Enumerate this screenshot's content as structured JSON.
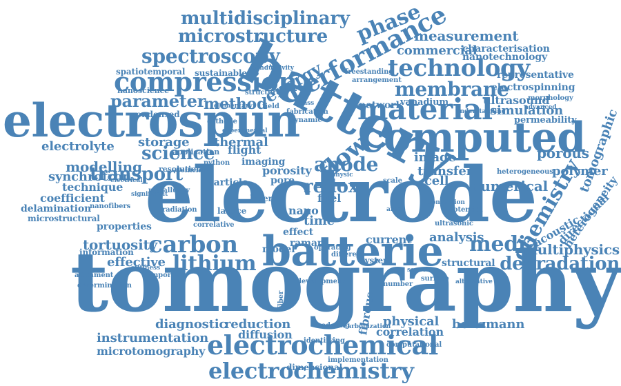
{
  "colors": {
    "word": "#4a83b6",
    "background": "#ffffff"
  },
  "words": {
    "tomography": "tomography",
    "electrode": "electrode",
    "battery": "battery",
    "electrospun": "electrospun",
    "computed": "computed",
    "batterie": "batterie",
    "electrochemical": "electrochemical",
    "electrochemistry": "electrochemistry",
    "material": "material",
    "compression": "compression",
    "performance": "performance",
    "technology": "technology",
    "membrane": "membrane",
    "spectroscopy": "spectroscopy",
    "microstructure": "microstructure",
    "multidisciplinary": "multidisciplinary",
    "measurement": "measurement",
    "carbon": "carbon",
    "lithium": "lithium",
    "degradation": "degradation",
    "media": "media",
    "transport": "transport",
    "science": "science",
    "image": "image",
    "redox": "redox",
    "flow": "flow",
    "chemistry": "chemistry",
    "parameter": "parameter",
    "method": "method",
    "energy": "energy",
    "commercial": "commercial",
    "nanotechnology": "nanotechnology",
    "characterisation": "characterisation",
    "electrospinning": "electrospinning",
    "representative": "representative",
    "ultrasound": "ultrasound",
    "permeability": "permeability",
    "simulation": "simulation",
    "transfer": "transfer",
    "anode": "anode",
    "cell": "cell",
    "numerical": "numerical",
    "polymer": "polymer",
    "tomographic": "tomographic",
    "heterogeneity": "heterogeneity",
    "heterogeneous": "heterogeneous",
    "directional": "directional",
    "multiphysics": "multiphysics",
    "electrolyte": "electrolyte",
    "modelling": "modelling",
    "synchrotron": "synchrotron",
    "technique": "technique",
    "coefficient": "coefficient",
    "delamination": "delamination",
    "microstructural": "microstructural",
    "tortuosity": "tortuosity",
    "effective": "effective",
    "information": "information",
    "thermal": "thermal",
    "diagnostic": "diagnostic",
    "instrumentation": "instrumentation",
    "microtomography": "microtomography",
    "reduction": "reduction",
    "diffusion": "diffusion",
    "physical": "physical",
    "correlation": "correlation",
    "boltzmann": "boltzmann",
    "fibrous": "fibrous",
    "analysis": "analysis",
    "current": "current",
    "structural": "structural",
    "spatiotemporal": "spatiotemporal",
    "sustainable": "sustainable",
    "nanoscience": "nanoscience",
    "elementary": "elementary",
    "imaging": "imaging",
    "porosity": "porosity",
    "network": "network",
    "vanadium": "vanadium",
    "arrangement": "arrangement",
    "freestanding": "freestanding",
    "condensed": "condensed",
    "resolution": "resolution",
    "pore": "pore",
    "layer": "layer",
    "particle": "particle",
    "lattice": "lattice",
    "fuel": "fuel",
    "nano": "nano",
    "time": "time",
    "effect": "effect",
    "model": "model",
    "raman": "raman",
    "dimensional": "dimensional",
    "implementation": "implementation",
    "porous": "porous",
    "acoustic": "acoustic",
    "properties": "properties",
    "storage": "storage",
    "alignment": "alignment",
    "radiation": "radiation",
    "application": "application",
    "correlative": "correlative",
    "important": "important",
    "stiffness": "stiffness",
    "python": "python",
    "scale": "scale",
    "area": "area",
    "system": "system",
    "potential": "potential",
    "ultrasonic": "ultrasonic",
    "conversion": "conversion",
    "modeling": "modeling",
    "carbonization": "carbonization",
    "identifying": "identifying",
    "cathode": "cathode",
    "conductivity": "conductivity",
    "structure": "structure",
    "experimental": "experimental",
    "operating": "operating",
    "metallurgy": "metallurgy",
    "nanofibers": "nanofibers",
    "electrical": "electrical",
    "different": "different",
    "number": "number",
    "sensor": "sensor",
    "surface": "surface",
    "alternative": "alternative",
    "dynamic": "dynamic",
    "fabrication": "fabrication",
    "morphology": "morphology",
    "advanced": "advanced",
    "physic": "physic",
    "mass": "mass",
    "field": "field",
    "flight": "flight",
    "fiber": "fiber",
    "phase": "phase",
    "development": "development",
    "computational": "computational",
    "efficient": "efficient",
    "significant": "significant",
    "understanding": "understanding",
    "determination": "determination"
  }
}
